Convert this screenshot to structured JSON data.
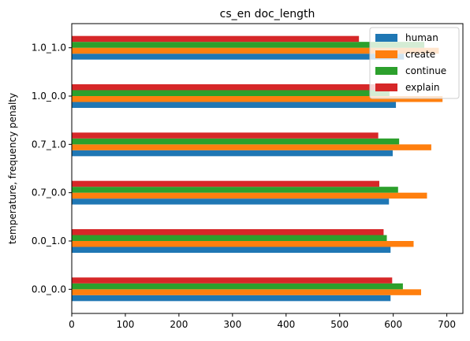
{
  "chart_data": {
    "type": "bar",
    "orientation": "horizontal",
    "title": "cs_en doc_length",
    "xlabel": "",
    "ylabel": "temperature, frequency penalty",
    "categories": [
      "0.0_0.0",
      "0.0_1.0",
      "0.7_0.0",
      "0.7_1.0",
      "1.0_0.0",
      "1.0_1.0"
    ],
    "series": [
      {
        "name": "human",
        "color": "#1f77b4",
        "values": [
          595,
          595,
          592,
          599,
          605,
          620
        ]
      },
      {
        "name": "create",
        "color": "#ff7f0e",
        "values": [
          652,
          638,
          663,
          671,
          692,
          685
        ]
      },
      {
        "name": "continue",
        "color": "#2ca02c",
        "values": [
          618,
          588,
          609,
          611,
          593,
          658
        ]
      },
      {
        "name": "explain",
        "color": "#d62728",
        "values": [
          598,
          582,
          574,
          572,
          592,
          536
        ]
      }
    ],
    "xlim": [
      0,
      730
    ],
    "xticks": [
      0,
      100,
      200,
      300,
      400,
      500,
      600,
      700
    ],
    "grid": false,
    "legend": "top-right"
  }
}
